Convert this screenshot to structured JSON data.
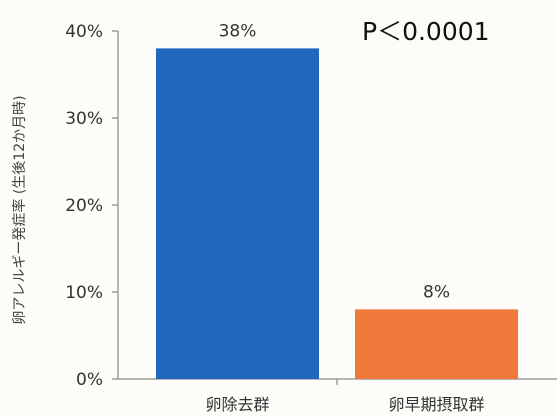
{
  "chart_data": {
    "type": "bar",
    "categories": [
      "卵除去群",
      "卵早期摂取群"
    ],
    "values": [
      38,
      8
    ],
    "value_labels": [
      "38%",
      "8%"
    ],
    "ylabel": "卵アレルギー発症率 (生後12か月時)",
    "xlabel": "",
    "ylim": [
      0,
      40
    ],
    "yticks": [
      0,
      10,
      20,
      30,
      40
    ],
    "ytick_labels": [
      "0%",
      "10%",
      "20%",
      "30%",
      "40%"
    ],
    "annotation": "P＜0.0001",
    "grid": false,
    "colors": [
      "#2167bc",
      "#f07a3b"
    ]
  }
}
